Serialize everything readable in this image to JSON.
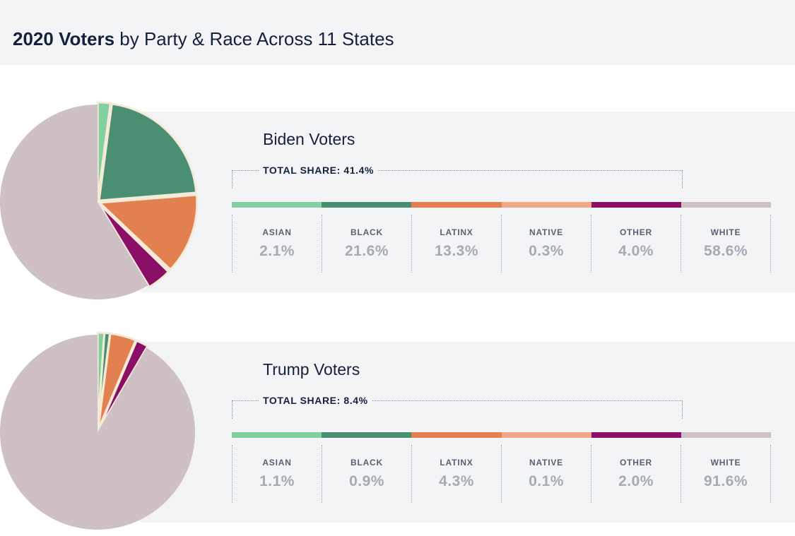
{
  "header": {
    "title_bold": "2020 Voters",
    "title_rest": " by Party & Race Across 11 States"
  },
  "colors": {
    "ASIAN": "#82cfa1",
    "BLACK": "#4a8f72",
    "LATINX": "#e3804f",
    "NATIVE": "#f2a887",
    "OTHER": "#8b0f66",
    "WHITE": "#cfc0c6",
    "pie_stroke": "#f4ead8"
  },
  "chart_data": [
    {
      "type": "pie",
      "title": "Biden Voters",
      "total_share_label": "TOTAL SHARE: 41.4%",
      "categories": [
        "ASIAN",
        "BLACK",
        "LATINX",
        "NATIVE",
        "OTHER",
        "WHITE"
      ],
      "values": [
        2.1,
        21.6,
        13.3,
        0.3,
        4.0,
        58.6
      ],
      "value_labels": [
        "2.1%",
        "21.6%",
        "13.3%",
        "0.3%",
        "4.0%",
        "58.6%"
      ]
    },
    {
      "type": "pie",
      "title": "Trump Voters",
      "total_share_label": "TOTAL SHARE: 8.4%",
      "categories": [
        "ASIAN",
        "BLACK",
        "LATINX",
        "NATIVE",
        "OTHER",
        "WHITE"
      ],
      "values": [
        1.1,
        0.9,
        4.3,
        0.1,
        2.0,
        91.6
      ],
      "value_labels": [
        "1.1%",
        "0.9%",
        "4.3%",
        "0.1%",
        "2.0%",
        "91.6%"
      ]
    }
  ]
}
